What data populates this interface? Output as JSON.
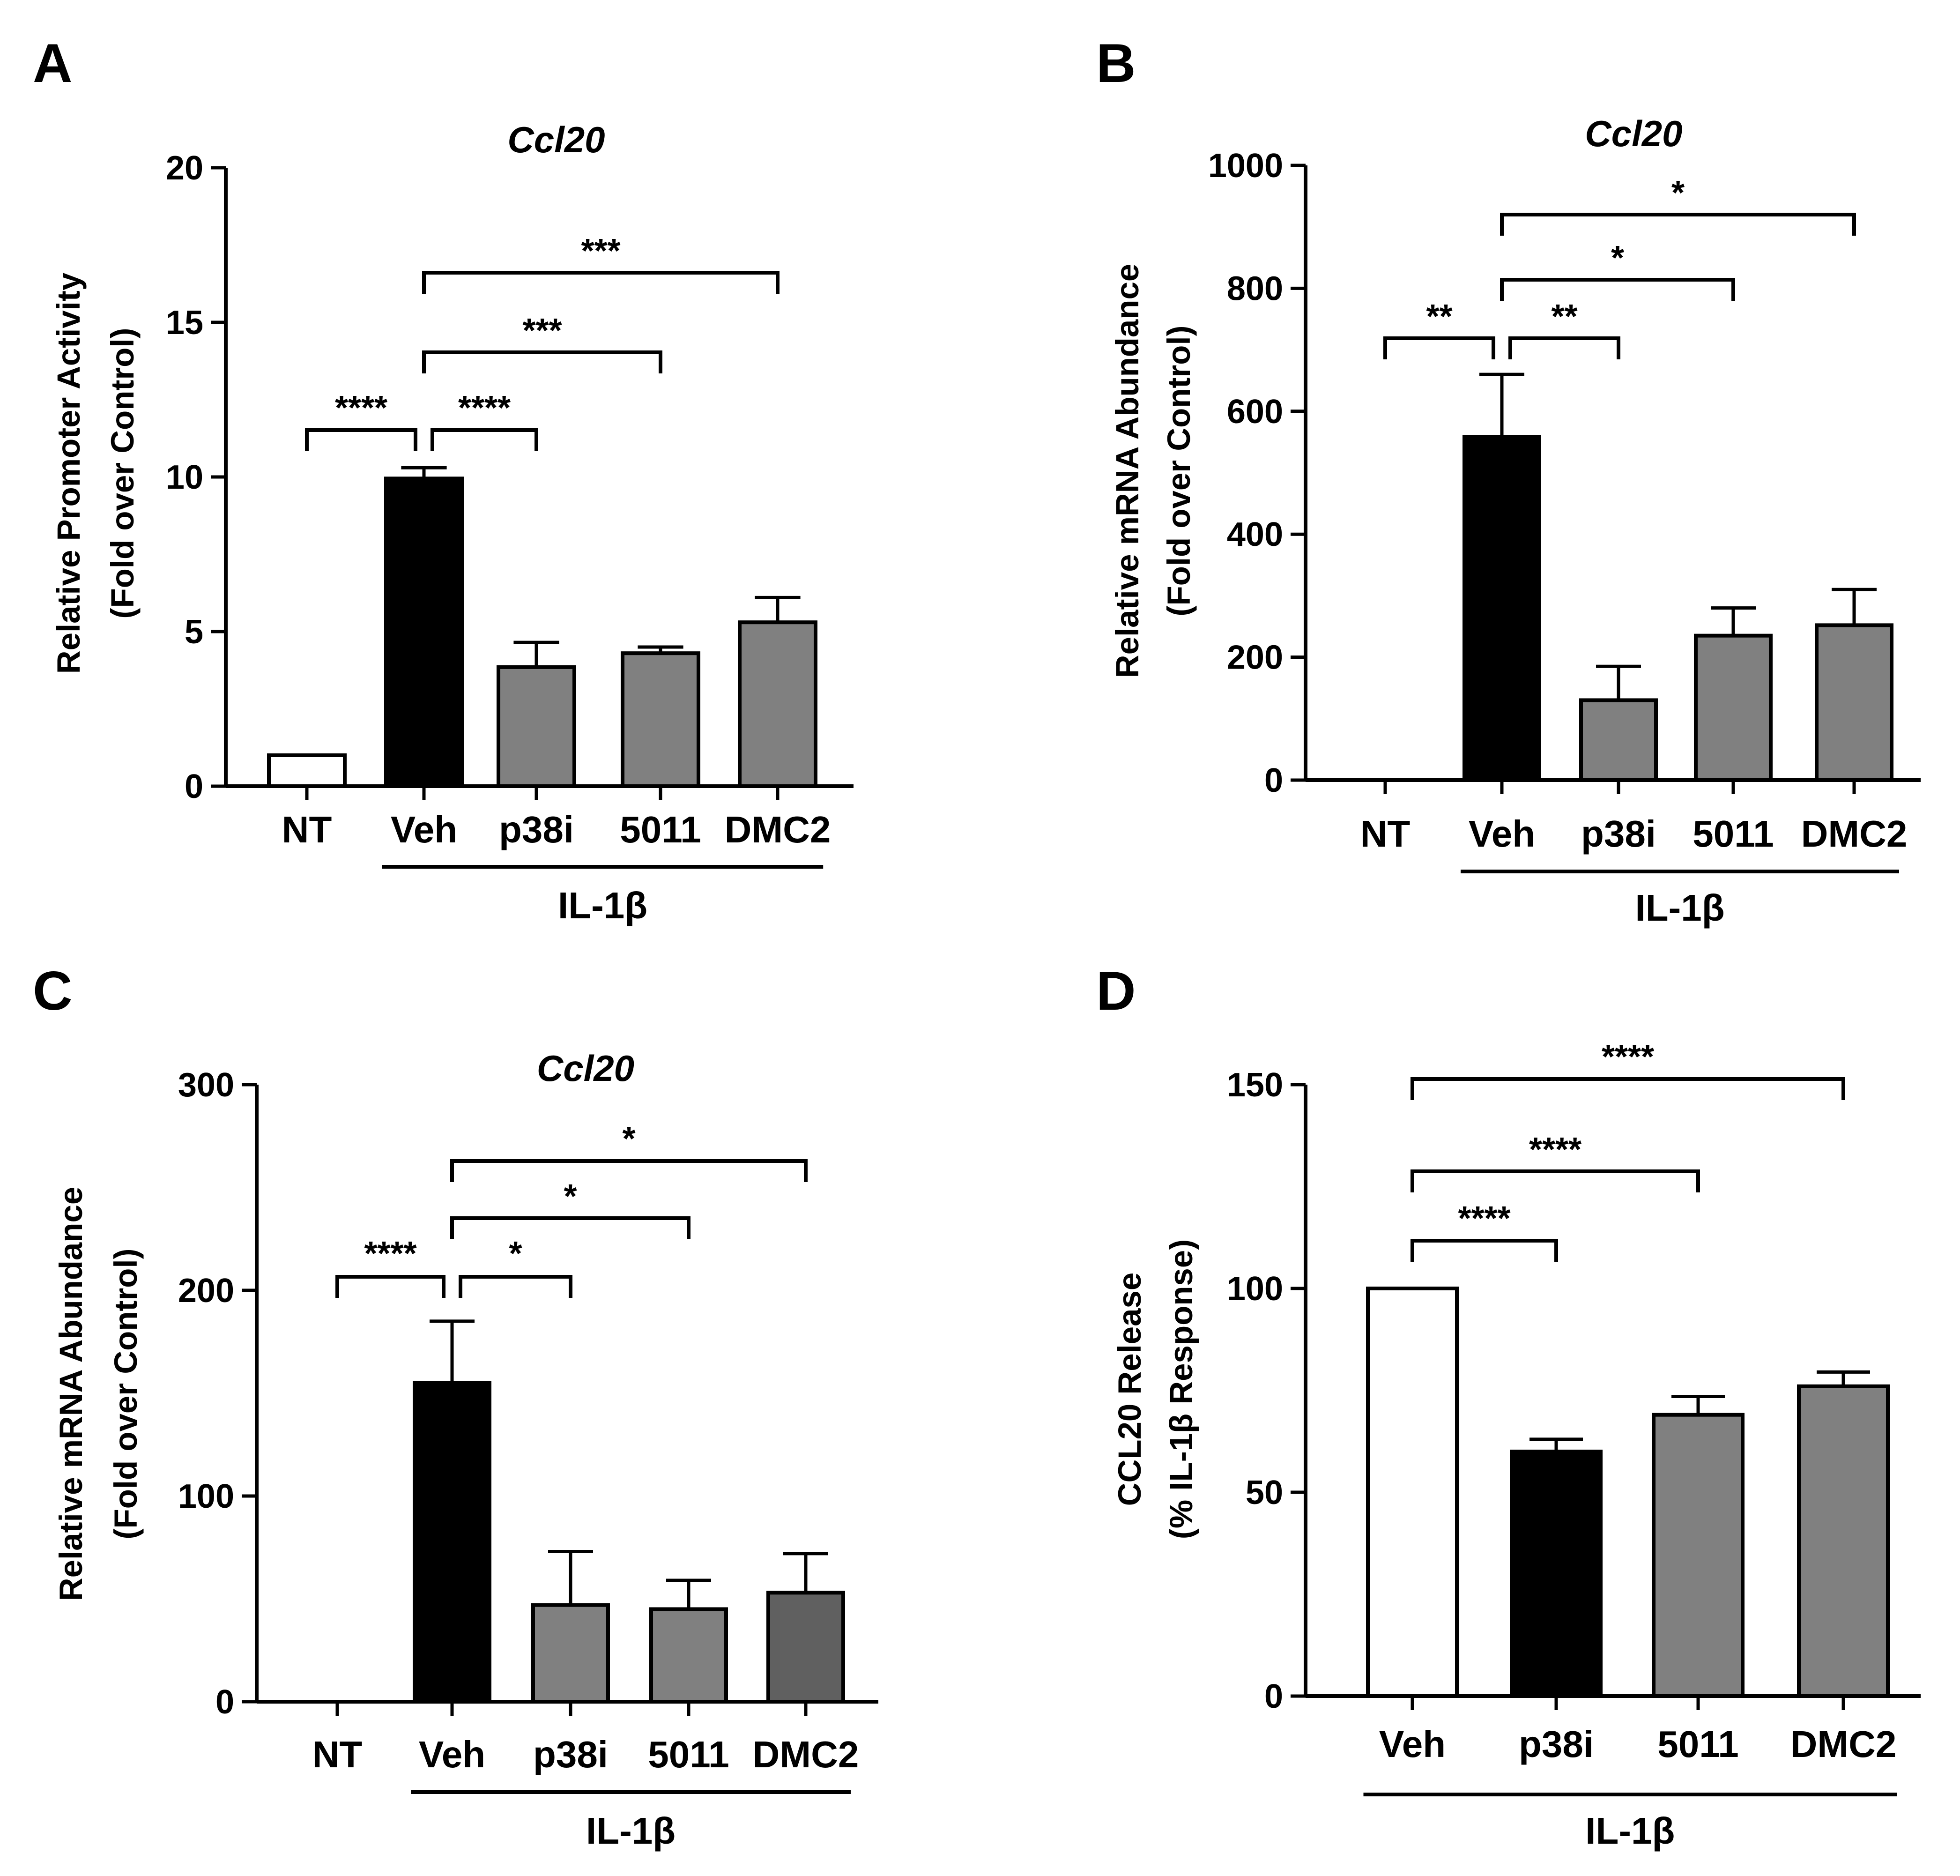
{
  "chart_data": [
    {
      "panel": "A",
      "type": "bar",
      "title": "Ccl20",
      "ylabel": [
        "Relative Promoter Activity",
        "(Fold over Control)"
      ],
      "categories": [
        "NT",
        "Veh",
        "p38i",
        "5011",
        "DMC2"
      ],
      "values": [
        1.0,
        9.95,
        3.85,
        4.3,
        5.3
      ],
      "errors": [
        0,
        0.35,
        0.8,
        0.2,
        0.8
      ],
      "colors": [
        "#ffffff",
        "#000000",
        "#808080",
        "#808080",
        "#808080"
      ],
      "ylim": [
        0,
        20
      ],
      "yticks": [
        0,
        5,
        10,
        15,
        20
      ],
      "group_label": "IL-1β",
      "group_categories": [
        "Veh",
        "p38i",
        "5011",
        "DMC2"
      ],
      "significance": [
        {
          "from": "NT",
          "to": "Veh",
          "label": "****"
        },
        {
          "from": "Veh",
          "to": "p38i",
          "label": "****"
        },
        {
          "from": "Veh",
          "to": "5011",
          "label": "***"
        },
        {
          "from": "Veh",
          "to": "DMC2",
          "label": "***"
        }
      ]
    },
    {
      "panel": "B",
      "type": "bar",
      "title": "Ccl20",
      "ylabel": [
        "Relative mRNA Abundance",
        "(Fold over Control)"
      ],
      "categories": [
        "NT",
        "Veh",
        "p38i",
        "5011",
        "DMC2"
      ],
      "values": [
        1,
        558,
        130,
        235,
        252
      ],
      "errors": [
        0,
        102,
        55,
        45,
        58
      ],
      "colors": [
        "#ffffff",
        "#000000",
        "#808080",
        "#808080",
        "#808080"
      ],
      "ylim": [
        0,
        1000
      ],
      "yticks": [
        0,
        200,
        400,
        600,
        800,
        1000
      ],
      "group_label": "IL-1β",
      "group_categories": [
        "Veh",
        "p38i",
        "5011",
        "DMC2"
      ],
      "significance": [
        {
          "from": "NT",
          "to": "Veh",
          "label": "**"
        },
        {
          "from": "Veh",
          "to": "p38i",
          "label": "**"
        },
        {
          "from": "Veh",
          "to": "5011",
          "label": "*"
        },
        {
          "from": "Veh",
          "to": "DMC2",
          "label": "*"
        }
      ]
    },
    {
      "panel": "C",
      "type": "bar",
      "title": "Ccl20",
      "ylabel": [
        "Relative mRNA Abundance",
        "(Fold over Control)"
      ],
      "categories": [
        "NT",
        "Veh",
        "p38i",
        "5011",
        "DMC2"
      ],
      "values": [
        1,
        155,
        47,
        45,
        53
      ],
      "errors": [
        0,
        30,
        26,
        14,
        19
      ],
      "colors": [
        "#ffffff",
        "#000000",
        "#808080",
        "#808080",
        "#606060"
      ],
      "ylim": [
        0,
        300
      ],
      "yticks": [
        0,
        100,
        200,
        300
      ],
      "group_label": "IL-1β",
      "group_categories": [
        "Veh",
        "p38i",
        "5011",
        "DMC2"
      ],
      "significance": [
        {
          "from": "NT",
          "to": "Veh",
          "label": "****"
        },
        {
          "from": "Veh",
          "to": "p38i",
          "label": "*"
        },
        {
          "from": "Veh",
          "to": "5011",
          "label": "*"
        },
        {
          "from": "Veh",
          "to": "DMC2",
          "label": "*"
        }
      ]
    },
    {
      "panel": "D",
      "type": "bar",
      "title": "",
      "ylabel": [
        "CCL20 Release",
        "(% IL-1β Response)"
      ],
      "categories": [
        "Veh",
        "p38i",
        "5011",
        "DMC2"
      ],
      "values": [
        100,
        60,
        69,
        76
      ],
      "errors": [
        0,
        3,
        4.5,
        3.5
      ],
      "colors": [
        "#ffffff",
        "#000000",
        "#808080",
        "#808080"
      ],
      "ylim": [
        0,
        150
      ],
      "yticks": [
        0,
        50,
        100,
        150
      ],
      "group_label": "IL-1β",
      "group_categories": [
        "Veh",
        "p38i",
        "5011",
        "DMC2"
      ],
      "significance": [
        {
          "from": "Veh",
          "to": "p38i",
          "label": "****"
        },
        {
          "from": "Veh",
          "to": "5011",
          "label": "****"
        },
        {
          "from": "Veh",
          "to": "DMC2",
          "label": "****"
        }
      ]
    }
  ]
}
